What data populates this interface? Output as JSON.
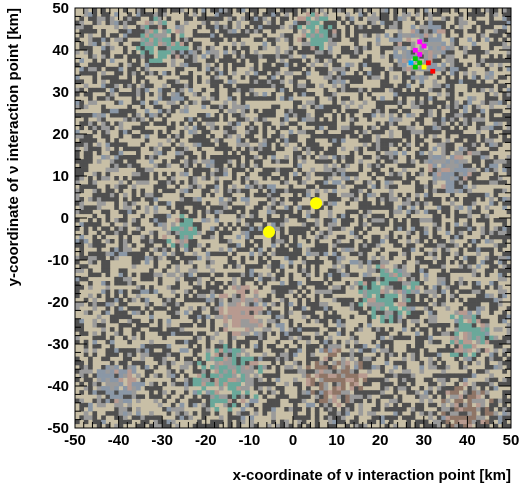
{
  "chart_data": {
    "type": "heatmap",
    "title": "",
    "xlabel": "x-coordinate of ν interaction point [km]",
    "ylabel": "y-coordinate of ν interaction point [km]",
    "xlim": [
      -50,
      50
    ],
    "ylim": [
      -50,
      50
    ],
    "x_ticks": [
      "-50",
      "-40",
      "-30",
      "-20",
      "-10",
      "0",
      "10",
      "20",
      "30",
      "40",
      "50"
    ],
    "y_ticks": [
      "-50",
      "-40",
      "-30",
      "-20",
      "-10",
      "0",
      "10",
      "20",
      "30",
      "40",
      "50"
    ],
    "grid": false,
    "legend": "none",
    "cell_size_km": 1,
    "palette": {
      "dark_gray": "#4f4f4f",
      "beige": "#c8bfa6",
      "light_gray": "#9a9a9a",
      "blue_gray": "#8a97a6",
      "teal": "#6aa89a",
      "brown": "#8f7566",
      "rose": "#b89a90"
    },
    "highlight_regions": [
      {
        "x": 30,
        "y": 40,
        "radius": 7,
        "tone": "blue_gray"
      },
      {
        "x": 36,
        "y": 12,
        "radius": 6,
        "tone": "blue_gray"
      },
      {
        "x": 22,
        "y": -18,
        "radius": 7,
        "tone": "teal"
      },
      {
        "x": 40,
        "y": -28,
        "radius": 6,
        "tone": "teal"
      },
      {
        "x": -26,
        "y": -3,
        "radius": 4,
        "tone": "teal"
      },
      {
        "x": -15,
        "y": -38,
        "radius": 8,
        "tone": "teal"
      },
      {
        "x": -40,
        "y": -40,
        "radius": 6,
        "tone": "blue_gray"
      },
      {
        "x": 10,
        "y": -38,
        "radius": 7,
        "tone": "brown"
      },
      {
        "x": -12,
        "y": -22,
        "radius": 6,
        "tone": "rose"
      },
      {
        "x": -30,
        "y": 42,
        "radius": 6,
        "tone": "teal"
      },
      {
        "x": 5,
        "y": 44,
        "radius": 5,
        "tone": "teal"
      },
      {
        "x": 40,
        "y": -45,
        "radius": 6,
        "tone": "brown"
      }
    ],
    "special_points": [
      {
        "x": -5.5,
        "y": -3.3,
        "color": "#ffff00",
        "shape": "circle"
      },
      {
        "x": 5.3,
        "y": 3.5,
        "color": "#ffff00",
        "shape": "circle"
      }
    ],
    "hot_pixels": [
      {
        "x": 29,
        "y": 42,
        "color": "#ff00ff"
      },
      {
        "x": 30,
        "y": 41,
        "color": "#ff00ff"
      },
      {
        "x": 28,
        "y": 40,
        "color": "#ff00ff"
      },
      {
        "x": 29,
        "y": 39,
        "color": "#ff00ff"
      },
      {
        "x": 28,
        "y": 38,
        "color": "#00cc00"
      },
      {
        "x": 29,
        "y": 37,
        "color": "#00cc00"
      },
      {
        "x": 28,
        "y": 36,
        "color": "#00cc00"
      },
      {
        "x": 30,
        "y": 36,
        "color": "#ffff00"
      },
      {
        "x": 31,
        "y": 37,
        "color": "#ff0000"
      },
      {
        "x": 32,
        "y": 35,
        "color": "#ff0000"
      },
      {
        "x": 27,
        "y": 37,
        "color": "#00aaff"
      }
    ]
  }
}
